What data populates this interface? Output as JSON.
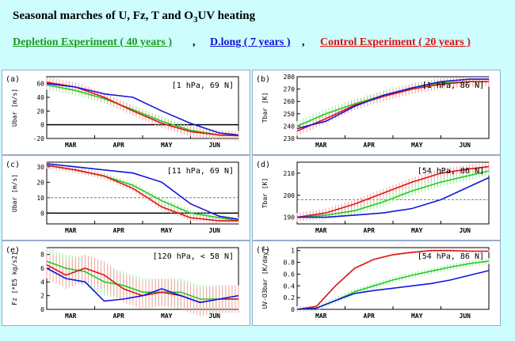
{
  "header": {
    "title_pre": "Seasonal marches of U, Fz, T and O",
    "title_sub": "3",
    "title_post": "UV heating",
    "legend": [
      {
        "label": "Depletion Experiment ( 40 years )",
        "color": "#1a9a1a"
      },
      {
        "label": "D.long ( 7 years )",
        "color": "#1010e0"
      },
      {
        "label": "Control Experiment ( 20 years )",
        "color": "#e01010"
      }
    ],
    "separator": ","
  },
  "colors": {
    "depletion": "#22cc22",
    "dlong": "#1515dd",
    "control": "#dd1515",
    "spread_green": "#9ee89e",
    "spread_red": "#f3a3a3"
  },
  "chart_data": [
    {
      "id": "a",
      "type": "line",
      "panel_label": "(a)",
      "annotation": "[1 hPa, 69 N]",
      "ylabel": "Ubar [m/s]",
      "ylim": [
        -20,
        70
      ],
      "yticks": [
        -20,
        0,
        20,
        40,
        60
      ],
      "zero_line": 0,
      "ref_line": null,
      "categories": [
        "MAR",
        "APR",
        "MAY",
        "JUN"
      ],
      "x": [
        0,
        0.15,
        0.3,
        0.45,
        0.6,
        0.75,
        0.9,
        1.0
      ],
      "series": [
        {
          "key": "depletion",
          "values": [
            58,
            50,
            38,
            22,
            5,
            -8,
            -15,
            -16
          ],
          "spread": 7
        },
        {
          "key": "control",
          "values": [
            62,
            55,
            40,
            20,
            2,
            -10,
            -15,
            -16
          ],
          "spread": 7
        },
        {
          "key": "dlong",
          "values": [
            60,
            55,
            45,
            40,
            20,
            2,
            -12,
            -15
          ],
          "spread": 0
        }
      ]
    },
    {
      "id": "b",
      "type": "line",
      "panel_label": "(b)",
      "annotation": "[1 hPa, 86 N]",
      "ylabel": "Tbar [K]",
      "ylim": [
        230,
        280
      ],
      "yticks": [
        230,
        240,
        250,
        260,
        270,
        280
      ],
      "zero_line": null,
      "ref_line": null,
      "categories": [
        "MAR",
        "APR",
        "MAY",
        "JUN"
      ],
      "x": [
        0,
        0.15,
        0.3,
        0.45,
        0.6,
        0.75,
        0.9,
        1.0
      ],
      "series": [
        {
          "key": "depletion",
          "values": [
            240,
            250,
            258,
            265,
            271,
            275,
            276,
            276
          ],
          "spread": 4
        },
        {
          "key": "control",
          "values": [
            236,
            246,
            257,
            264,
            270,
            274,
            276,
            276
          ],
          "spread": 4
        },
        {
          "key": "dlong",
          "values": [
            238,
            244,
            256,
            265,
            271,
            276,
            278,
            278
          ],
          "spread": 0
        }
      ]
    },
    {
      "id": "c",
      "type": "line",
      "panel_label": "(c)",
      "annotation": "[11 hPa, 69 N]",
      "ylabel": "Ubar [m/s]",
      "ylim": [
        -7,
        33
      ],
      "yticks": [
        0,
        10,
        20,
        30
      ],
      "zero_line": 0,
      "ref_line": 10,
      "categories": [
        "MAR",
        "APR",
        "MAY",
        "JUN"
      ],
      "x": [
        0,
        0.15,
        0.3,
        0.45,
        0.6,
        0.75,
        0.9,
        1.0
      ],
      "series": [
        {
          "key": "depletion",
          "values": [
            31,
            28,
            24,
            18,
            8,
            0,
            -3,
            -5
          ],
          "spread": 2
        },
        {
          "key": "control",
          "values": [
            31,
            28,
            24,
            16,
            4,
            -3,
            -5,
            -5
          ],
          "spread": 2
        },
        {
          "key": "dlong",
          "values": [
            32,
            30,
            28,
            26,
            20,
            6,
            -2,
            -4
          ],
          "spread": 0
        }
      ]
    },
    {
      "id": "d",
      "type": "line",
      "panel_label": "(d)",
      "annotation": "[54 hPa, 86 N]",
      "ylabel": "Tbar [K]",
      "ylim": [
        187,
        215
      ],
      "yticks": [
        190,
        200,
        210
      ],
      "zero_line": null,
      "ref_line": 198,
      "categories": [
        "MAR",
        "APR",
        "MAY",
        "JUN"
      ],
      "x": [
        0,
        0.15,
        0.3,
        0.45,
        0.6,
        0.75,
        0.9,
        1.0
      ],
      "series": [
        {
          "key": "depletion",
          "values": [
            190,
            191,
            193,
            197,
            202,
            206,
            209,
            211
          ],
          "spread": 2
        },
        {
          "key": "control",
          "values": [
            190,
            192,
            196,
            201,
            206,
            210,
            212,
            213
          ],
          "spread": 2
        },
        {
          "key": "dlong",
          "values": [
            190,
            190,
            191,
            192,
            194,
            198,
            204,
            208
          ],
          "spread": 0
        }
      ]
    },
    {
      "id": "e",
      "type": "line",
      "panel_label": "(e)",
      "annotation": "[120 hPa, < 58 N]",
      "ylabel": "Fz [*E5 kg/s2]",
      "ylim": [
        0,
        9
      ],
      "yticks": [
        0,
        2,
        4,
        6,
        8
      ],
      "zero_line": null,
      "ref_line": null,
      "categories": [
        "MAR",
        "APR",
        "MAY",
        "JUN"
      ],
      "x": [
        0,
        0.1,
        0.2,
        0.3,
        0.4,
        0.5,
        0.6,
        0.7,
        0.8,
        0.9,
        1.0
      ],
      "series": [
        {
          "key": "depletion",
          "values": [
            7,
            6,
            5.5,
            4,
            3.5,
            2.5,
            2.5,
            2.5,
            1.5,
            1.5,
            1.5
          ],
          "spread": 2
        },
        {
          "key": "control",
          "values": [
            6.5,
            5,
            6,
            5,
            3,
            2,
            2.5,
            2,
            1,
            1.5,
            1.5
          ],
          "spread": 2
        },
        {
          "key": "dlong",
          "values": [
            6,
            4.5,
            4,
            1.2,
            1.5,
            2,
            3,
            2,
            1,
            1.5,
            2
          ],
          "spread": 0
        }
      ]
    },
    {
      "id": "f",
      "type": "line",
      "panel_label": "(f)",
      "annotation": "[54 hPa, 86 N]",
      "ylabel": "UV-O3bar [K/day]",
      "ylim": [
        0,
        1.05
      ],
      "yticks": [
        0,
        0.2,
        0.4,
        0.6,
        0.8,
        1.0
      ],
      "zero_line": null,
      "ref_line": null,
      "categories": [
        "MAR",
        "APR",
        "MAY",
        "JUN"
      ],
      "x": [
        0,
        0.1,
        0.2,
        0.3,
        0.4,
        0.5,
        0.6,
        0.7,
        0.8,
        0.9,
        1.0
      ],
      "series": [
        {
          "key": "depletion",
          "values": [
            0,
            0.02,
            0.15,
            0.3,
            0.4,
            0.5,
            0.58,
            0.65,
            0.72,
            0.78,
            0.82
          ],
          "spread": 0.05
        },
        {
          "key": "control",
          "values": [
            0,
            0.05,
            0.4,
            0.7,
            0.85,
            0.93,
            0.97,
            1.0,
            1.0,
            0.99,
            0.99
          ],
          "spread": 0.02
        },
        {
          "key": "dlong",
          "values": [
            0,
            0.02,
            0.15,
            0.27,
            0.32,
            0.36,
            0.4,
            0.44,
            0.5,
            0.58,
            0.66
          ],
          "spread": 0
        }
      ]
    }
  ]
}
